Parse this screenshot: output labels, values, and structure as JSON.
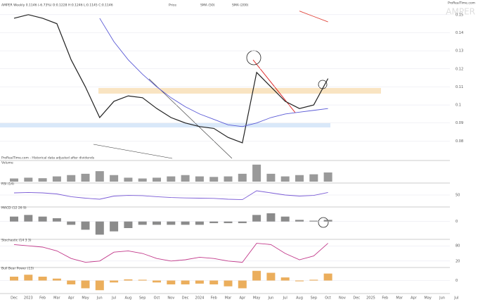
{
  "header": {
    "brand": "ProRealTime.com",
    "watermark": "AMPER",
    "footnote": "ProRealTime.com - Historical data adjusted after dividends"
  },
  "chart_data": [
    {
      "type": "line",
      "title": "AMPER Weekly 0.1146 (-6.73%) O:0.1228 H:0.1246 L:0.1145 C:0.1146",
      "categories": [
        "Dec",
        "2023",
        "Feb",
        "Mar",
        "Apr",
        "May",
        "Jun",
        "Jul",
        "Aug",
        "Sep",
        "Oct",
        "Nov",
        "Dec",
        "2024",
        "Feb",
        "Mar",
        "Apr",
        "May",
        "Jun",
        "Jul",
        "Aug",
        "Sep",
        "Oct",
        "Nov",
        "Dec",
        "2025",
        "Feb",
        "Mar",
        "Apr",
        "May",
        "Jun",
        "Jul"
      ],
      "series": [
        {
          "name": "Price",
          "color": "#222222",
          "values": [
            0.148,
            0.15,
            0.148,
            0.145,
            0.125,
            0.11,
            0.093,
            0.102,
            0.105,
            0.104,
            0.098,
            0.093,
            0.09,
            0.088,
            0.087,
            0.082,
            0.079,
            0.118,
            0.11,
            0.102,
            0.098,
            0.1,
            0.1146,
            null,
            null,
            null,
            null,
            null,
            null,
            null,
            null,
            null
          ]
        },
        {
          "name": "SMA (50)",
          "color": "#5a5ad6",
          "values": [
            null,
            null,
            null,
            null,
            null,
            null,
            0.148,
            0.135,
            0.125,
            0.117,
            0.11,
            0.104,
            0.099,
            0.095,
            0.092,
            0.089,
            0.088,
            0.09,
            0.093,
            0.095,
            0.096,
            0.097,
            0.098,
            null,
            null,
            null,
            null,
            null,
            null,
            null,
            null,
            null
          ]
        },
        {
          "name": "SMA (200)",
          "color": "#e0443a",
          "values": [
            null,
            null,
            null,
            null,
            null,
            null,
            null,
            null,
            null,
            null,
            null,
            null,
            null,
            null,
            null,
            null,
            null,
            null,
            null,
            null,
            0.152,
            0.149,
            0.146,
            null,
            null,
            null,
            null,
            null,
            null,
            null,
            null,
            null
          ]
        }
      ],
      "ylim": [
        0.07,
        0.155
      ],
      "yticks": [
        0.08,
        0.09,
        0.1,
        0.11,
        0.12,
        0.13,
        0.14,
        0.15
      ]
    },
    {
      "type": "bar",
      "title": "Volume",
      "series": [
        {
          "name": "Volume",
          "color": "#888888",
          "values": [
            1.2,
            1.5,
            1.3,
            2,
            2.5,
            3,
            4,
            2.5,
            1.5,
            1.2,
            1.5,
            2,
            2.5,
            2,
            1.8,
            2,
            3,
            6.5,
            3,
            2,
            2.5,
            2.8,
            3.5,
            null,
            null,
            null,
            null,
            null,
            null,
            null,
            null,
            null
          ]
        }
      ],
      "ylim": [
        0,
        7
      ],
      "yticks": []
    },
    {
      "type": "line",
      "title": "RSI (14)",
      "series": [
        {
          "name": "RSI",
          "color": "#7b5cd6",
          "values": [
            60,
            62,
            60,
            55,
            42,
            35,
            30,
            45,
            48,
            47,
            42,
            38,
            36,
            35,
            34,
            30,
            28,
            70,
            60,
            50,
            45,
            48,
            62,
            null,
            null,
            null,
            null,
            null,
            null,
            null,
            null,
            null
          ]
        }
      ],
      "ylim": [
        0,
        100
      ],
      "yticks": [
        50
      ]
    },
    {
      "type": "bar",
      "title": "MACD (12 26 9)",
      "series": [
        {
          "name": "MACD",
          "color": "#777777",
          "values": [
            0.003,
            0.004,
            0.003,
            0.002,
            -0.002,
            -0.005,
            -0.008,
            -0.006,
            -0.004,
            -0.002,
            -0.002,
            -0.002,
            -0.002,
            -0.002,
            -0.001,
            -0.001,
            -0.001,
            0.004,
            0.005,
            0.003,
            0.001,
            0.0005,
            0.001,
            null,
            null,
            null,
            null,
            null,
            null,
            null,
            null,
            null
          ]
        }
      ],
      "ylim": [
        -0.01,
        0.008
      ],
      "yticks": [
        0
      ]
    },
    {
      "type": "line",
      "title": "Stochastic (14 3 3)",
      "series": [
        {
          "name": "Stochastic",
          "color": "#c2398a",
          "values": [
            85,
            80,
            75,
            60,
            30,
            15,
            20,
            55,
            60,
            50,
            30,
            20,
            25,
            35,
            30,
            20,
            15,
            90,
            85,
            50,
            25,
            40,
            90,
            null,
            null,
            null,
            null,
            null,
            null,
            null,
            null,
            null
          ]
        }
      ],
      "ylim": [
        0,
        100
      ],
      "yticks": [
        20,
        80
      ]
    },
    {
      "type": "bar",
      "title": "Bull Bear Power (13)",
      "series": [
        {
          "name": "Bull Bear Power",
          "color": "#e8a040",
          "values": [
            0.01,
            0.015,
            0.01,
            0.005,
            -0.01,
            -0.02,
            -0.025,
            -0.005,
            0.003,
            0.002,
            -0.005,
            -0.01,
            -0.01,
            -0.008,
            -0.01,
            -0.015,
            -0.02,
            0.025,
            0.02,
            0.008,
            -0.002,
            0.002,
            0.018,
            null,
            null,
            null,
            null,
            null,
            null,
            null,
            null,
            null
          ]
        }
      ],
      "ylim": [
        -0.03,
        0.03
      ],
      "yticks": [
        0
      ]
    }
  ]
}
